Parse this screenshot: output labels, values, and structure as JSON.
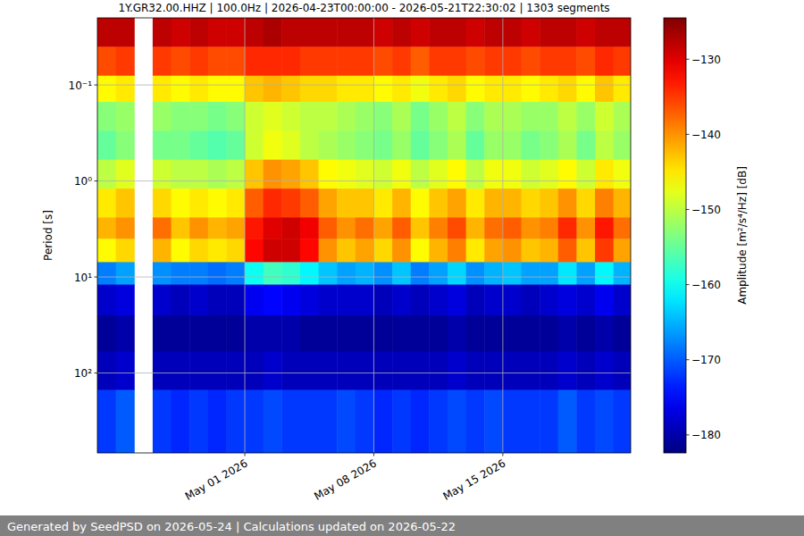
{
  "chart_data": {
    "type": "heatmap",
    "title": "1Y.GR32.00.HHZ | 100.0Hz | 2026-04-23T00:00:00 - 2026-05-21T22:30:02 | 1303 segments",
    "y_label": "Period [s]",
    "log": "y",
    "grid": true,
    "xlim": [
      "2026-04-23T00:00:00",
      "2026-05-21T22:30:02"
    ],
    "xticks": [
      {
        "value": "2026-05-01",
        "label": "May 01 2026"
      },
      {
        "value": "2026-05-08",
        "label": "May 08 2026"
      },
      {
        "value": "2026-05-15",
        "label": "May 15 2026"
      }
    ],
    "ylim": [
      0.02,
      680
    ],
    "yticks": [
      {
        "value": 0.1,
        "label": "10⁻¹"
      },
      {
        "value": 1,
        "label": "10⁰"
      },
      {
        "value": 10,
        "label": "10¹"
      },
      {
        "value": 100,
        "label": "10²"
      }
    ],
    "x": [
      "2026-04-23",
      "2026-04-24",
      "2026-04-25",
      "2026-04-26",
      "2026-04-27",
      "2026-04-28",
      "2026-04-29",
      "2026-04-30",
      "2026-05-01",
      "2026-05-02",
      "2026-05-03",
      "2026-05-04",
      "2026-05-05",
      "2026-05-06",
      "2026-05-07",
      "2026-05-08",
      "2026-05-09",
      "2026-05-10",
      "2026-05-11",
      "2026-05-12",
      "2026-05-13",
      "2026-05-14",
      "2026-05-15",
      "2026-05-16",
      "2026-05-17",
      "2026-05-18",
      "2026-05-19",
      "2026-05-20",
      "2026-05-21"
    ],
    "y_bins": [
      0.02,
      0.04,
      0.08,
      0.15,
      0.3,
      0.6,
      1.2,
      2.4,
      4,
      7,
      12,
      25,
      60,
      150,
      680
    ],
    "values": [
      [
        -128,
        -128,
        null,
        -128,
        -129,
        -128,
        -129,
        -129,
        -128,
        -127,
        -128,
        -128,
        -128,
        -128,
        -128,
        -129,
        -128,
        -129,
        -128,
        -128,
        -129,
        -128,
        -128,
        -129,
        -128,
        -128,
        -129,
        -128,
        -128
      ],
      [
        -136,
        -135,
        null,
        -135,
        -136,
        -135,
        -136,
        -136,
        -134,
        -134,
        -134,
        -135,
        -135,
        -135,
        -135,
        -136,
        -135,
        -137,
        -135,
        -135,
        -136,
        -135,
        -135,
        -136,
        -135,
        -135,
        -136,
        -134,
        -135
      ],
      [
        -146,
        -145,
        null,
        -145,
        -146,
        -145,
        -146,
        -146,
        -143,
        -142,
        -143,
        -144,
        -144,
        -145,
        -145,
        -146,
        -145,
        -147,
        -145,
        -144,
        -146,
        -145,
        -145,
        -146,
        -145,
        -144,
        -146,
        -143,
        -145
      ],
      [
        -153,
        -152,
        null,
        -152,
        -153,
        -153,
        -154,
        -153,
        -149,
        -148,
        -149,
        -150,
        -150,
        -151,
        -152,
        -153,
        -151,
        -154,
        -152,
        -150,
        -153,
        -151,
        -151,
        -152,
        -152,
        -150,
        -152,
        -149,
        -151
      ],
      [
        -155,
        -153,
        null,
        -154,
        -154,
        -155,
        -156,
        -155,
        -149,
        -147,
        -148,
        -150,
        -151,
        -152,
        -153,
        -154,
        -152,
        -155,
        -153,
        -151,
        -155,
        -152,
        -152,
        -154,
        -153,
        -151,
        -154,
        -150,
        -152
      ],
      [
        -150,
        -148,
        null,
        -149,
        -150,
        -150,
        -151,
        -150,
        -143,
        -140,
        -141,
        -143,
        -146,
        -147,
        -148,
        -149,
        -147,
        -150,
        -148,
        -146,
        -150,
        -147,
        -147,
        -149,
        -148,
        -146,
        -149,
        -145,
        -147
      ],
      [
        -145,
        -143,
        null,
        -144,
        -146,
        -145,
        -146,
        -145,
        -137,
        -134,
        -135,
        -137,
        -141,
        -143,
        -143,
        -145,
        -142,
        -146,
        -143,
        -141,
        -145,
        -142,
        -142,
        -144,
        -143,
        -140,
        -144,
        -139,
        -142
      ],
      [
        -142,
        -140,
        null,
        -138,
        -143,
        -140,
        -142,
        -141,
        -133,
        -130,
        -129,
        -131,
        -137,
        -140,
        -138,
        -141,
        -137,
        -143,
        -139,
        -136,
        -142,
        -138,
        -137,
        -140,
        -139,
        -134,
        -140,
        -133,
        -138
      ],
      [
        -146,
        -144,
        null,
        -142,
        -146,
        -144,
        -145,
        -144,
        -132,
        -129,
        -129,
        -132,
        -140,
        -143,
        -141,
        -144,
        -140,
        -146,
        -142,
        -139,
        -145,
        -141,
        -140,
        -143,
        -142,
        -137,
        -143,
        -135,
        -141
      ],
      [
        -168,
        -166,
        null,
        -167,
        -168,
        -168,
        -169,
        -168,
        -160,
        -157,
        -158,
        -161,
        -164,
        -166,
        -165,
        -167,
        -164,
        -168,
        -166,
        -163,
        -167,
        -165,
        -164,
        -166,
        -166,
        -162,
        -166,
        -161,
        -165
      ],
      [
        -178,
        -177,
        null,
        -178,
        -179,
        -178,
        -179,
        -179,
        -176,
        -175,
        -176,
        -177,
        -178,
        -178,
        -178,
        -179,
        -178,
        -179,
        -178,
        -177,
        -179,
        -178,
        -178,
        -179,
        -178,
        -177,
        -178,
        -176,
        -178
      ],
      [
        -181,
        -180,
        null,
        -181,
        -181,
        -181,
        -181,
        -181,
        -180,
        -180,
        -180,
        -181,
        -181,
        -181,
        -181,
        -181,
        -181,
        -181,
        -181,
        -180,
        -181,
        -181,
        -181,
        -181,
        -181,
        -180,
        -181,
        -180,
        -181
      ],
      [
        -179,
        -178,
        null,
        -179,
        -179,
        -179,
        -179,
        -179,
        -179,
        -178,
        -179,
        -179,
        -179,
        -179,
        -179,
        -179,
        -179,
        -179,
        -179,
        -178,
        -179,
        -179,
        -179,
        -179,
        -179,
        -178,
        -179,
        -178,
        -179
      ],
      [
        -172,
        -170,
        null,
        -172,
        -173,
        -172,
        -173,
        -172,
        -172,
        -171,
        -172,
        -172,
        -172,
        -171,
        -172,
        -173,
        -172,
        -173,
        -172,
        -171,
        -172,
        -171,
        -172,
        -172,
        -172,
        -170,
        -172,
        -171,
        -172
      ]
    ],
    "colorbar": {
      "label": "Amplitude [m²/s⁴/Hz] [dB]",
      "range": [
        -182.4,
        -124.5
      ],
      "ticks": [
        {
          "value": -130,
          "label": "−130"
        },
        {
          "value": -140,
          "label": "−140"
        },
        {
          "value": -150,
          "label": "−150"
        },
        {
          "value": -160,
          "label": "−160"
        },
        {
          "value": -170,
          "label": "−170"
        },
        {
          "value": -180,
          "label": "−180"
        }
      ]
    }
  },
  "footer": "Generated by SeedPSD on 2026-05-24 | Calculations updated on 2026-05-22"
}
